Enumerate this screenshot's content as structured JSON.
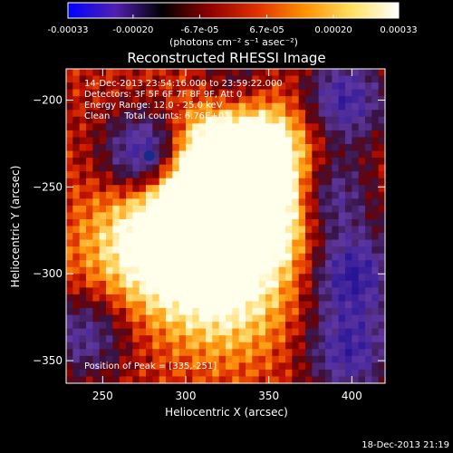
{
  "colorbar": {
    "tick_labels": [
      "-0.00033",
      "-0.00020",
      "-6.7e-05",
      "6.7e-05",
      "0.00020",
      "0.00033"
    ],
    "tick_values": [
      -0.00033,
      -0.0002,
      -6.7e-05,
      6.7e-05,
      0.0002,
      0.00033
    ],
    "range": [
      -0.00033,
      0.00033
    ],
    "units": "(photons cm⁻² s⁻¹ asec⁻²)"
  },
  "chart_data": {
    "type": "heatmap",
    "title": "Reconstructed RHESSI Image",
    "xlabel": "Heliocentric X (arcsec)",
    "ylabel": "Heliocentric Y (arcsec)",
    "xlim": [
      228,
      420
    ],
    "ylim": [
      -363,
      -182
    ],
    "x_ticks": [
      250,
      300,
      350,
      400
    ],
    "y_ticks": [
      -350,
      -300,
      -250,
      -200
    ],
    "colormap": [
      "#0000ff",
      "#5020b0",
      "#000000",
      "#900000",
      "#e03000",
      "#ff9000",
      "#ffe060",
      "#ffffff"
    ],
    "annotations": [
      "14-Dec-2013 23:54:16.000 to 23:59:22.000",
      "Detectors: 3F 5F 6F 7F 8F 9F, Att 0",
      "Energy Range: 12.0 - 25.0 keV",
      "Clean     Total counts: 6.76E+03"
    ],
    "peak_label": "Position of Peak = [335,-251]",
    "peak": {
      "x": 335,
      "y": -251
    },
    "features": {
      "bright_arc": [
        {
          "x": 335,
          "y": -251,
          "v": 1.0
        },
        {
          "x": 320,
          "y": -232,
          "v": 0.8
        },
        {
          "x": 310,
          "y": -262,
          "v": 0.8
        },
        {
          "x": 298,
          "y": -272,
          "v": 0.7
        },
        {
          "x": 345,
          "y": -222,
          "v": 0.55
        },
        {
          "x": 355,
          "y": -268,
          "v": 0.6
        },
        {
          "x": 308,
          "y": -300,
          "v": 0.55
        },
        {
          "x": 265,
          "y": -288,
          "v": 0.55
        },
        {
          "x": 330,
          "y": -320,
          "v": 0.5
        }
      ],
      "negative_regions": [
        {
          "x": 278,
          "y": -232,
          "v": -1.0
        },
        {
          "x": 395,
          "y": -200,
          "v": -0.75
        },
        {
          "x": 385,
          "y": -255,
          "v": -0.7
        },
        {
          "x": 400,
          "y": -300,
          "v": -0.8
        },
        {
          "x": 398,
          "y": -345,
          "v": -0.7
        },
        {
          "x": 240,
          "y": -335,
          "v": -0.55
        },
        {
          "x": 330,
          "y": -195,
          "v": -0.5
        }
      ]
    }
  },
  "timestamp": "18-Dec-2013 21:19"
}
